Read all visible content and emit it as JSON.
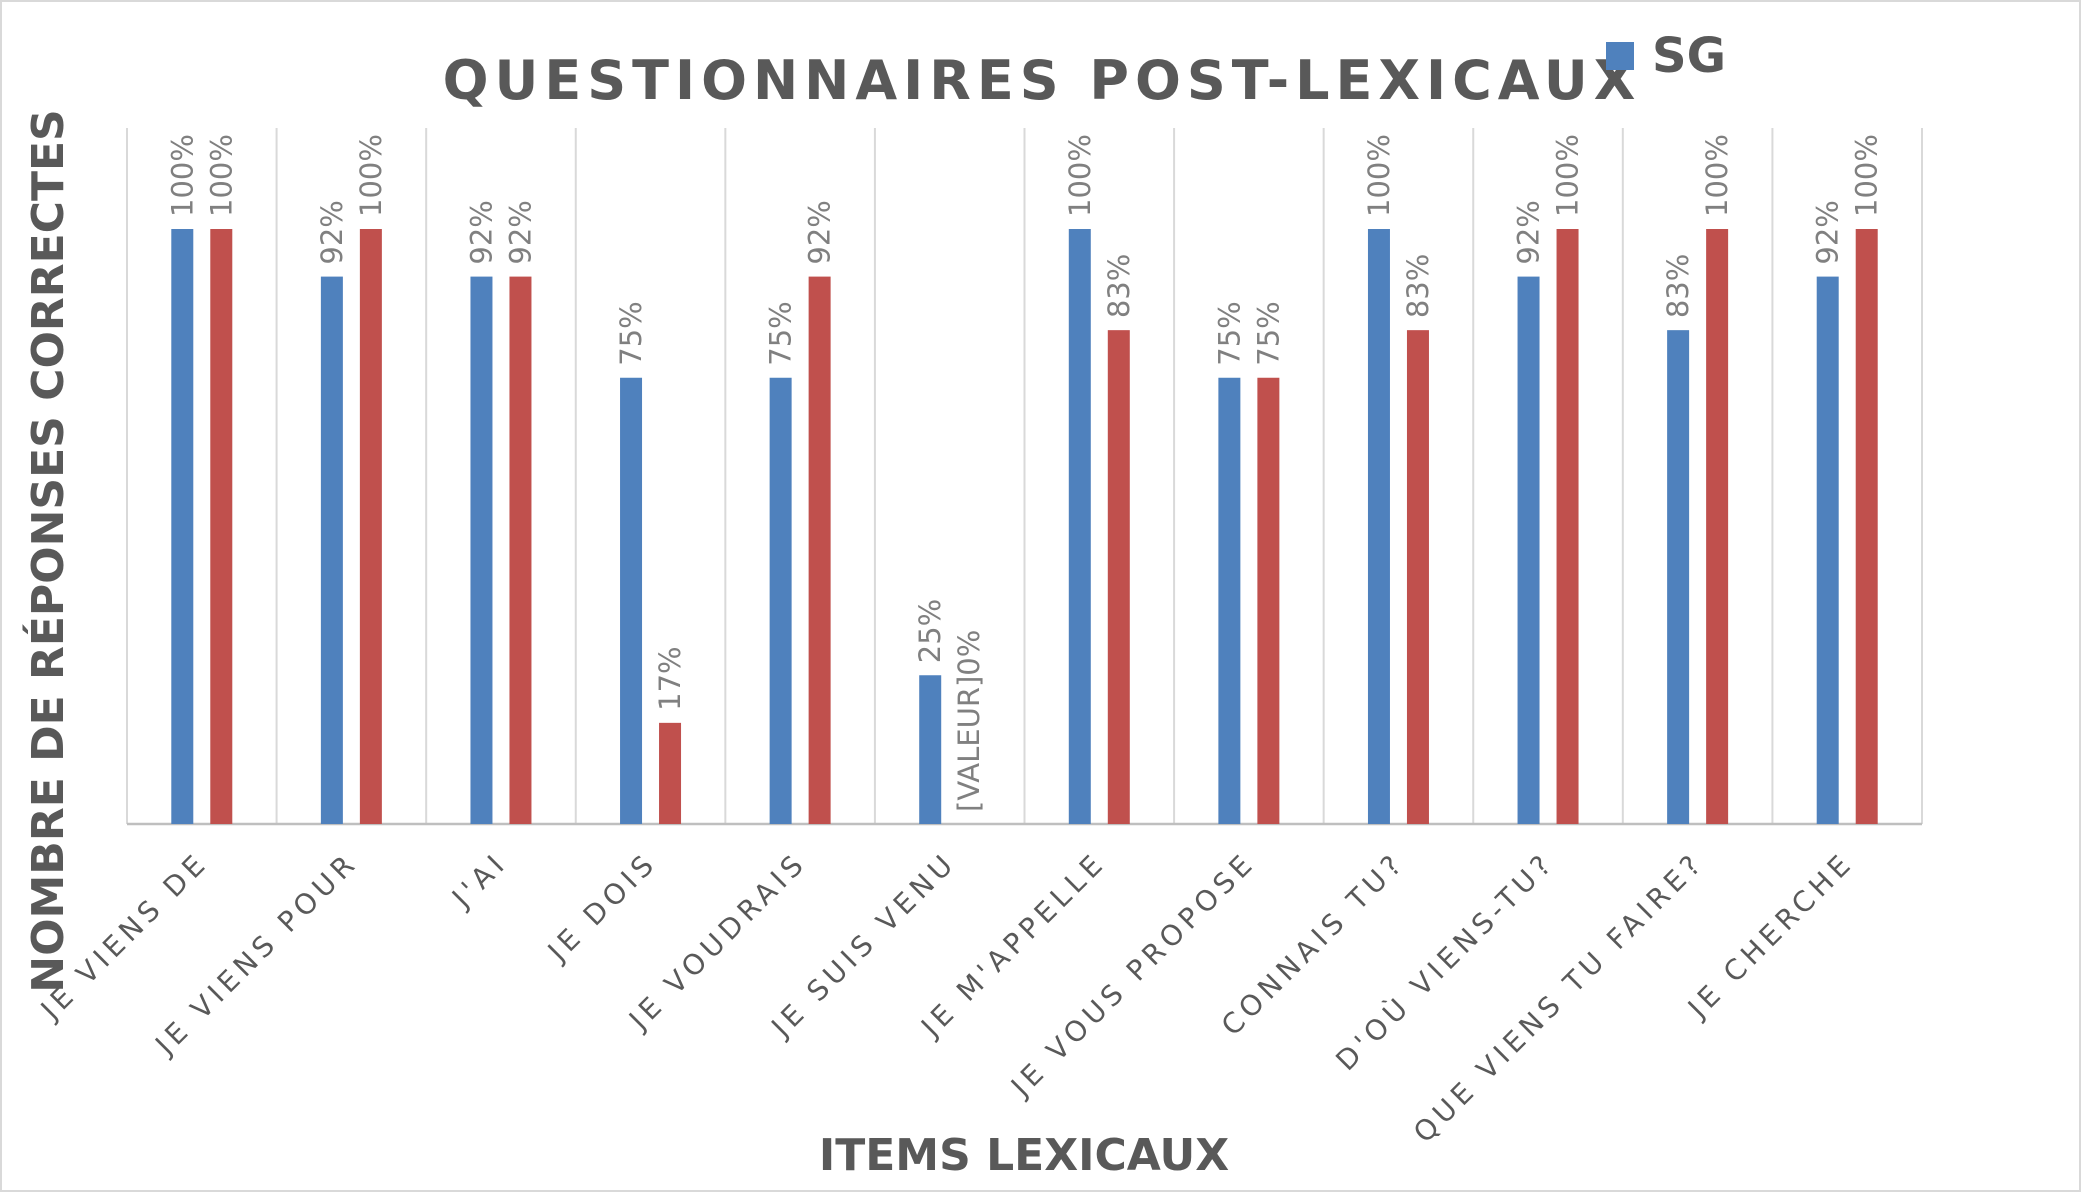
{
  "chart_data": {
    "type": "bar",
    "title": "QUESTIONNAIRES POST-LEXICAUX",
    "xlabel": "ITEMS LEXICAUX",
    "ylabel": "NOMBRE DE RÉPONSES CORRECTES",
    "ylim": [
      0,
      100
    ],
    "grid": "vertical",
    "legend_position": "top-right",
    "categories": [
      "JE VIENS DE",
      "JE VIENS POUR",
      "J'AI",
      "JE DOIS",
      "JE VOUDRAIS",
      "JE SUIS VENU",
      "JE M'APPELLE",
      "JE VOUS PROPOSE",
      "CONNAIS TU?",
      "D'OÙ VIENS-TU?",
      "QUE VIENS TU FAIRE?",
      "JE CHERCHE"
    ],
    "series": [
      {
        "name": "SG",
        "color": "#4f81bd",
        "values": [
          100,
          92,
          92,
          75,
          75,
          25,
          100,
          75,
          100,
          92,
          83,
          92
        ],
        "labels": [
          "100%",
          "92%",
          "92%",
          "75%",
          "75%",
          "25%",
          "100%",
          "75%",
          "100%",
          "92%",
          "83%",
          "92%"
        ]
      },
      {
        "color": "#c0504d",
        "values": [
          100,
          100,
          92,
          17,
          92,
          0,
          83,
          75,
          83,
          100,
          100,
          100
        ],
        "labels": [
          "100%",
          "100%",
          "92%",
          "17%",
          "92%",
          "[VALEUR]0%",
          "83%",
          "75%",
          "83%",
          "100%",
          "100%",
          "100%"
        ]
      }
    ]
  }
}
